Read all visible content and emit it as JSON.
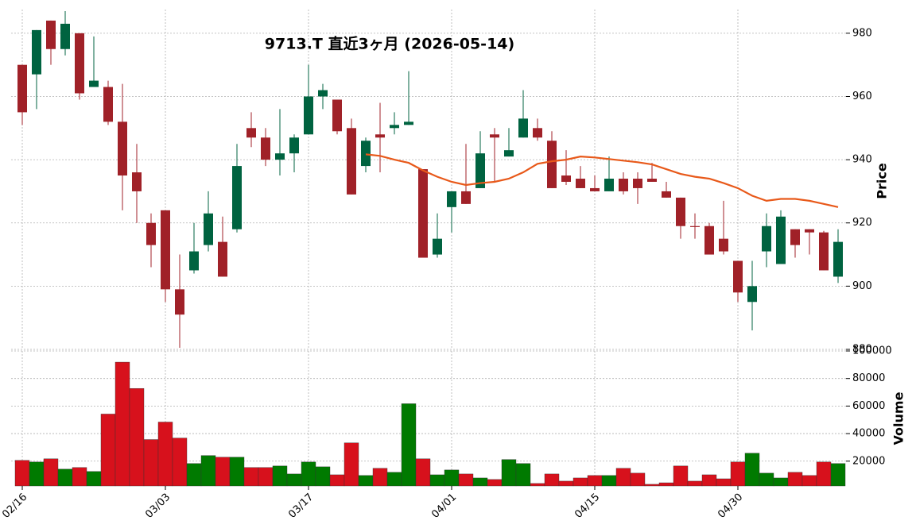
{
  "chart_data": [
    {
      "type": "candlestick",
      "title": "9713.T 直近3ヶ月 (2026-05-14)",
      "ylabel": "Price",
      "categories": [
        "02/16",
        null,
        null,
        null,
        null,
        null,
        null,
        null,
        null,
        null,
        "03/03",
        null,
        null,
        null,
        null,
        null,
        null,
        null,
        null,
        null,
        "03/17",
        null,
        null,
        null,
        null,
        null,
        null,
        null,
        null,
        null,
        "04/01",
        null,
        null,
        null,
        null,
        null,
        null,
        null,
        null,
        null,
        "04/15",
        null,
        null,
        null,
        null,
        null,
        null,
        null,
        null,
        null,
        "04/30",
        null,
        null,
        null,
        null,
        null,
        null,
        null
      ],
      "open": [
        970,
        967,
        984,
        975,
        980,
        963,
        963,
        952,
        936,
        920,
        924,
        899,
        905,
        913,
        914,
        918,
        950,
        947,
        940,
        942,
        948,
        960,
        959,
        950,
        938,
        948,
        950,
        951,
        937,
        910,
        925,
        930,
        931,
        948,
        941,
        947,
        950,
        946,
        935,
        934,
        931,
        930,
        934,
        934,
        934,
        930,
        928,
        919,
        919,
        915,
        908,
        895,
        911,
        907,
        918,
        918,
        917,
        903
      ],
      "high": [
        970,
        981,
        984,
        987,
        980,
        979,
        965,
        964,
        945,
        923,
        924,
        910,
        920,
        930,
        922,
        945,
        955,
        950,
        956,
        948,
        970,
        964,
        959,
        953,
        947,
        958,
        955,
        968,
        937,
        923,
        930,
        945,
        949,
        950,
        950,
        962,
        953,
        949,
        943,
        938,
        935,
        941,
        936,
        936,
        939,
        933,
        928,
        923,
        920,
        927,
        908,
        908,
        923,
        924,
        918,
        918,
        917.5,
        918
      ],
      "low": [
        951,
        956,
        970,
        973,
        959,
        963,
        951,
        924,
        920,
        906,
        895,
        880.5,
        904,
        911,
        903,
        917,
        944,
        938,
        935,
        936,
        948,
        956,
        948,
        929,
        936,
        936,
        948,
        951,
        909,
        909,
        917,
        926,
        931,
        933,
        941,
        947,
        946,
        931,
        932,
        931,
        930,
        930,
        929,
        926,
        933,
        928,
        915,
        915,
        910,
        910,
        895,
        886,
        906,
        907,
        909,
        910,
        905,
        901
      ],
      "close": [
        955,
        981,
        975,
        983,
        961,
        965,
        952,
        935,
        930,
        913,
        899,
        891,
        911,
        923,
        903,
        938,
        947,
        940,
        942,
        947,
        960,
        962,
        949,
        929,
        946,
        947,
        951,
        952,
        909,
        915,
        930,
        926,
        942,
        947,
        943,
        953,
        947,
        931,
        933,
        931,
        930,
        934,
        930,
        931,
        933,
        928,
        919,
        918.7,
        910,
        911,
        898,
        900,
        919,
        922,
        913,
        917,
        905,
        914
      ],
      "up_color": "#006340",
      "down_color": "#a02128",
      "ma": {
        "color": "#e8591a",
        "values": [
          null,
          null,
          null,
          null,
          null,
          null,
          null,
          null,
          null,
          null,
          null,
          null,
          null,
          null,
          null,
          null,
          null,
          null,
          null,
          null,
          null,
          null,
          null,
          null,
          941.7,
          941.2,
          940,
          939,
          936.6,
          934.6,
          933,
          932,
          932.6,
          933,
          934,
          936,
          938.7,
          939.5,
          940,
          941,
          940.7,
          940.2,
          939.7,
          939.2,
          938.5,
          937,
          935.5,
          934.6,
          934,
          932.6,
          931,
          928.6,
          927,
          927.6,
          927.6,
          927,
          926,
          925
        ]
      },
      "ylim": [
        880,
        987.5
      ],
      "yticks": [
        880,
        900,
        920,
        940,
        960,
        980
      ],
      "grid": true
    },
    {
      "type": "bar",
      "ylabel": "Volume",
      "values": [
        20600,
        19400,
        21700,
        14200,
        15400,
        12500,
        54200,
        91900,
        72800,
        35700,
        48400,
        36800,
        18300,
        24100,
        22900,
        22900,
        15400,
        15400,
        16500,
        10700,
        19400,
        15900,
        10100,
        33300,
        9600,
        14800,
        11900,
        61700,
        21700,
        10100,
        13600,
        10700,
        7800,
        6700,
        21200,
        18300,
        3800,
        10700,
        5500,
        7800,
        9600,
        9600,
        14800,
        11300,
        3200,
        4300,
        16500,
        5500,
        10100,
        7200,
        19400,
        25800,
        11300,
        7800,
        11900,
        9600,
        19400,
        18300
      ],
      "up_color": "#007a00",
      "down_color": "#d7111c",
      "ylim": [
        2000,
        100000
      ],
      "yticks": [
        20000,
        40000,
        60000,
        80000,
        100000
      ],
      "grid": true
    }
  ]
}
